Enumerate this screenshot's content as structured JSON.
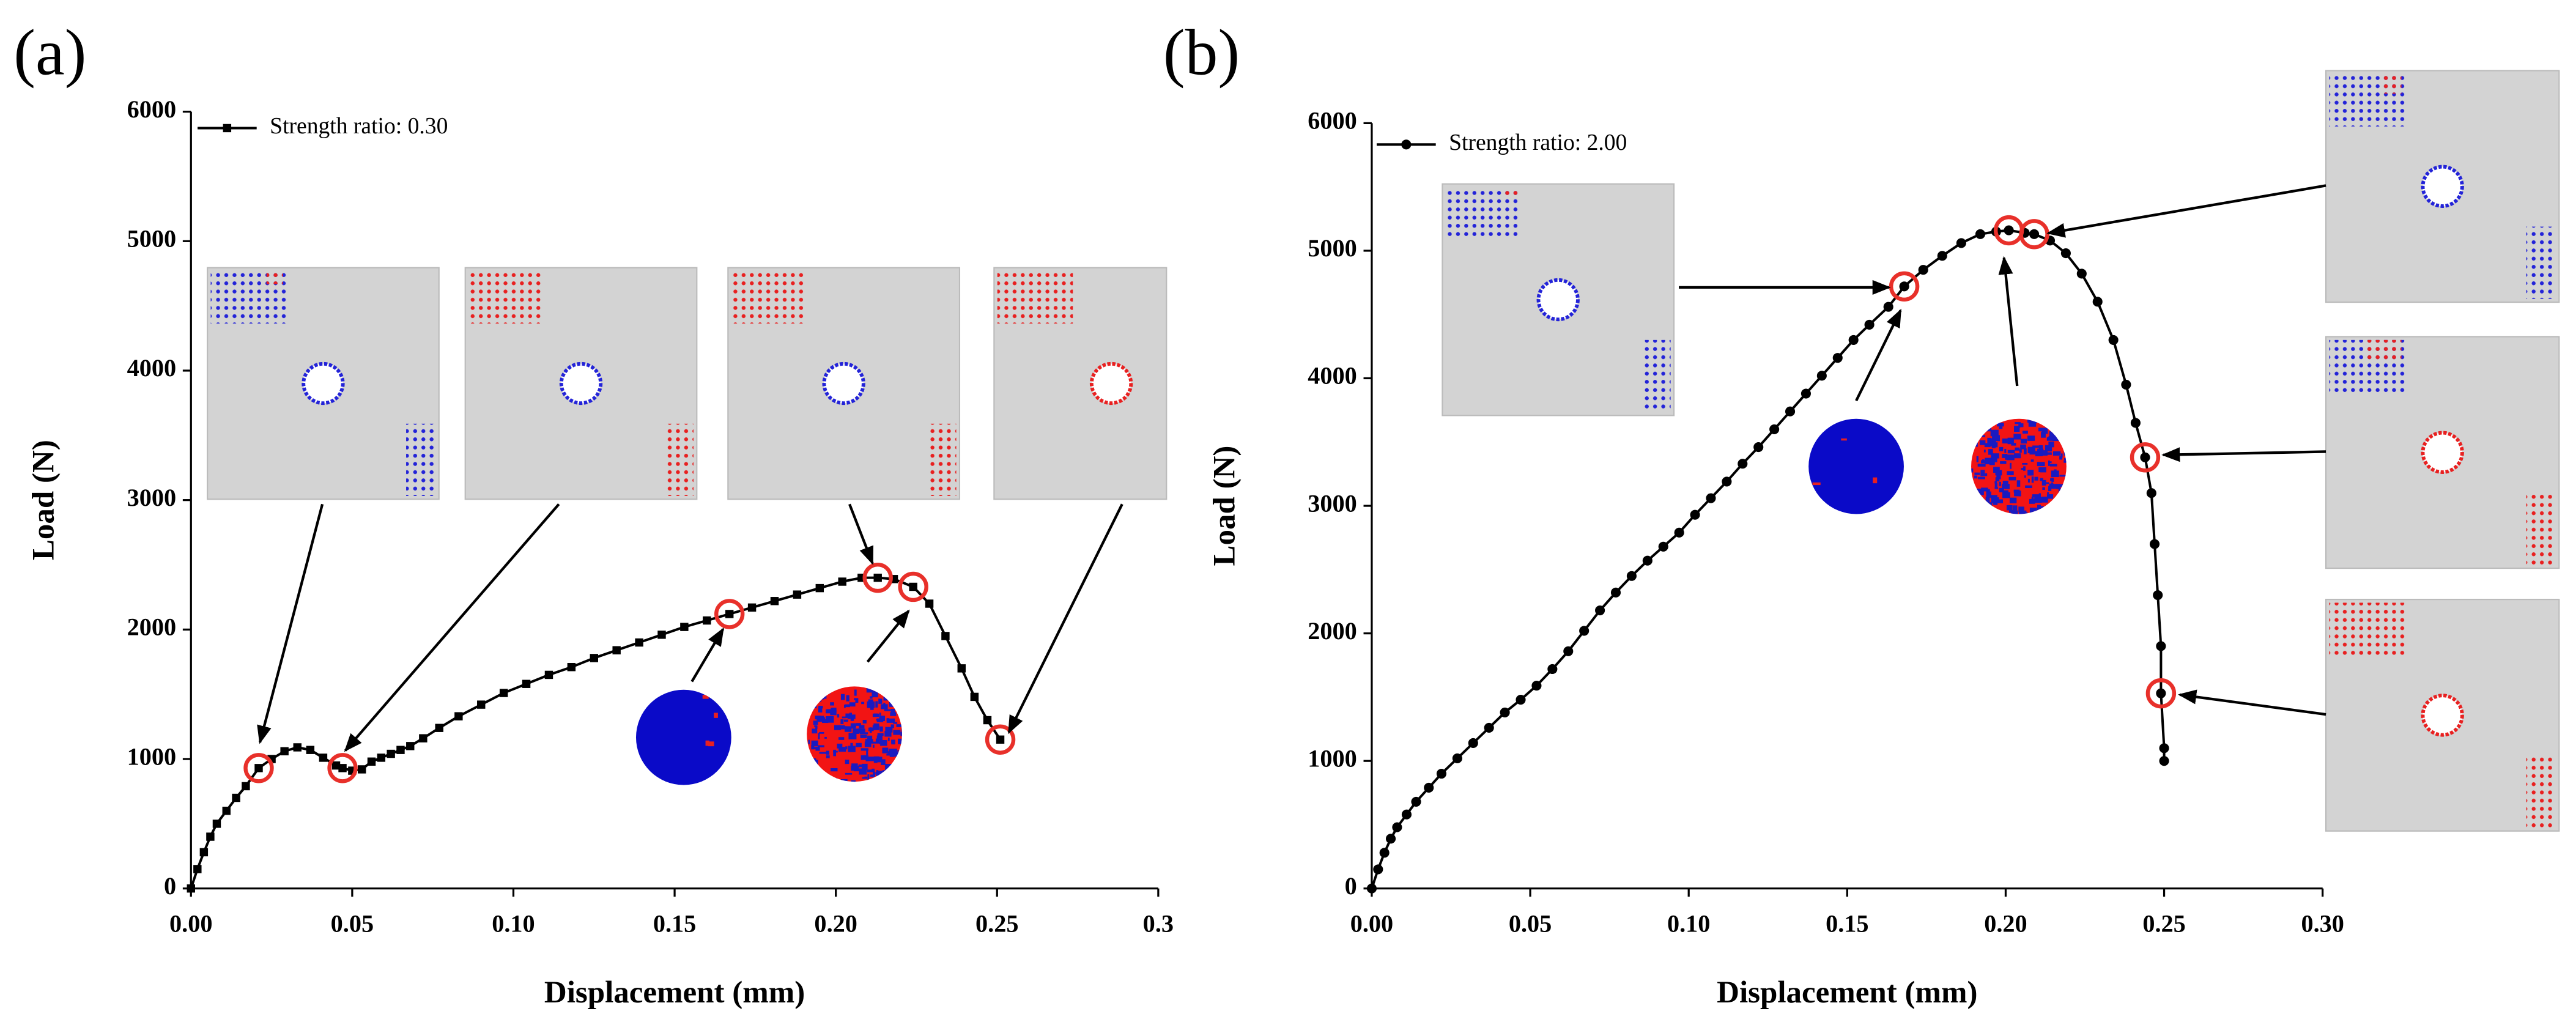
{
  "chart_data": [
    {
      "type": "line",
      "panel_label": "(a)",
      "x_label": "Displacement (mm)",
      "y_label": "Load (N)",
      "xlim": [
        0,
        0.3
      ],
      "ylim": [
        0,
        6000
      ],
      "xticks": [
        {
          "value": 0,
          "label": "0.00"
        },
        0.05,
        {
          "value": 0.1,
          "label": "0.10"
        },
        0.15,
        {
          "value": 0.2,
          "label": "0.20"
        },
        0.25,
        0.3
      ],
      "yticks": [
        0,
        1000,
        2000,
        3000,
        4000,
        5000,
        6000
      ],
      "highlight_color": "#e8302a",
      "series": [
        {
          "name": "Strength ratio: 0.30",
          "color": "#000000",
          "marker": "square",
          "x": [
            0,
            0.002,
            0.004,
            0.006,
            0.008,
            0.011,
            0.014,
            0.017,
            0.021,
            0.025,
            0.029,
            0.033,
            0.037,
            0.041,
            0.045,
            0.047,
            0.05,
            0.053,
            0.056,
            0.059,
            0.062,
            0.065,
            0.068,
            0.072,
            0.077,
            0.083,
            0.09,
            0.097,
            0.104,
            0.111,
            0.118,
            0.125,
            0.132,
            0.139,
            0.146,
            0.153,
            0.16,
            0.167,
            0.174,
            0.181,
            0.188,
            0.195,
            0.202,
            0.208,
            0.213,
            0.218,
            0.224,
            0.229,
            0.234,
            0.239,
            0.243,
            0.247,
            0.251
          ],
          "values": [
            0,
            150,
            280,
            400,
            500,
            600,
            700,
            790,
            930,
            1000,
            1060,
            1090,
            1070,
            1010,
            950,
            930,
            910,
            920,
            980,
            1010,
            1040,
            1070,
            1100,
            1160,
            1240,
            1330,
            1420,
            1510,
            1580,
            1650,
            1710,
            1780,
            1840,
            1900,
            1960,
            2020,
            2070,
            2120,
            2170,
            2220,
            2270,
            2320,
            2370,
            2400,
            2400,
            2390,
            2330,
            2200,
            1950,
            1700,
            1480,
            1300,
            1150
          ],
          "highlighted_points": [
            8,
            15,
            37,
            44,
            46,
            52
          ]
        }
      ]
    },
    {
      "type": "line",
      "panel_label": "(b)",
      "x_label": "Displacement (mm)",
      "y_label": "Load (N)",
      "xlim": [
        0,
        0.3
      ],
      "ylim": [
        0,
        6000
      ],
      "xticks": [
        {
          "value": 0,
          "label": "0.00"
        },
        0.05,
        {
          "value": 0.1,
          "label": "0.10"
        },
        0.15,
        {
          "value": 0.2,
          "label": "0.20"
        },
        0.25,
        {
          "value": 0.3,
          "label": "0.30"
        }
      ],
      "yticks": [
        0,
        1000,
        2000,
        3000,
        4000,
        5000,
        6000
      ],
      "highlight_color": "#e8302a",
      "series": [
        {
          "name": "Strength ratio: 2.00",
          "color": "#000000",
          "marker": "circle",
          "x": [
            0,
            0.002,
            0.004,
            0.006,
            0.008,
            0.011,
            0.014,
            0.018,
            0.022,
            0.027,
            0.032,
            0.037,
            0.042,
            0.047,
            0.052,
            0.057,
            0.062,
            0.067,
            0.072,
            0.077,
            0.082,
            0.087,
            0.092,
            0.097,
            0.102,
            0.107,
            0.112,
            0.117,
            0.122,
            0.127,
            0.132,
            0.137,
            0.142,
            0.147,
            0.152,
            0.157,
            0.163,
            0.168,
            0.174,
            0.18,
            0.186,
            0.192,
            0.197,
            0.201,
            0.206,
            0.209,
            0.214,
            0.219,
            0.224,
            0.229,
            0.234,
            0.238,
            0.241,
            0.244,
            0.246,
            0.247,
            0.248,
            0.249,
            0.249,
            0.25,
            0.25
          ],
          "values": [
            0,
            150,
            280,
            390,
            480,
            580,
            680,
            790,
            900,
            1020,
            1140,
            1260,
            1380,
            1480,
            1590,
            1720,
            1860,
            2020,
            2180,
            2320,
            2450,
            2570,
            2680,
            2790,
            2930,
            3060,
            3190,
            3330,
            3460,
            3600,
            3740,
            3880,
            4020,
            4160,
            4300,
            4420,
            4560,
            4720,
            4850,
            4960,
            5060,
            5130,
            5150,
            5160,
            5140,
            5130,
            5080,
            4980,
            4820,
            4600,
            4300,
            3950,
            3650,
            3380,
            3100,
            2700,
            2300,
            1900,
            1530,
            1100,
            1000
          ],
          "highlighted_points": [
            37,
            43,
            45,
            53,
            58
          ]
        }
      ]
    }
  ]
}
